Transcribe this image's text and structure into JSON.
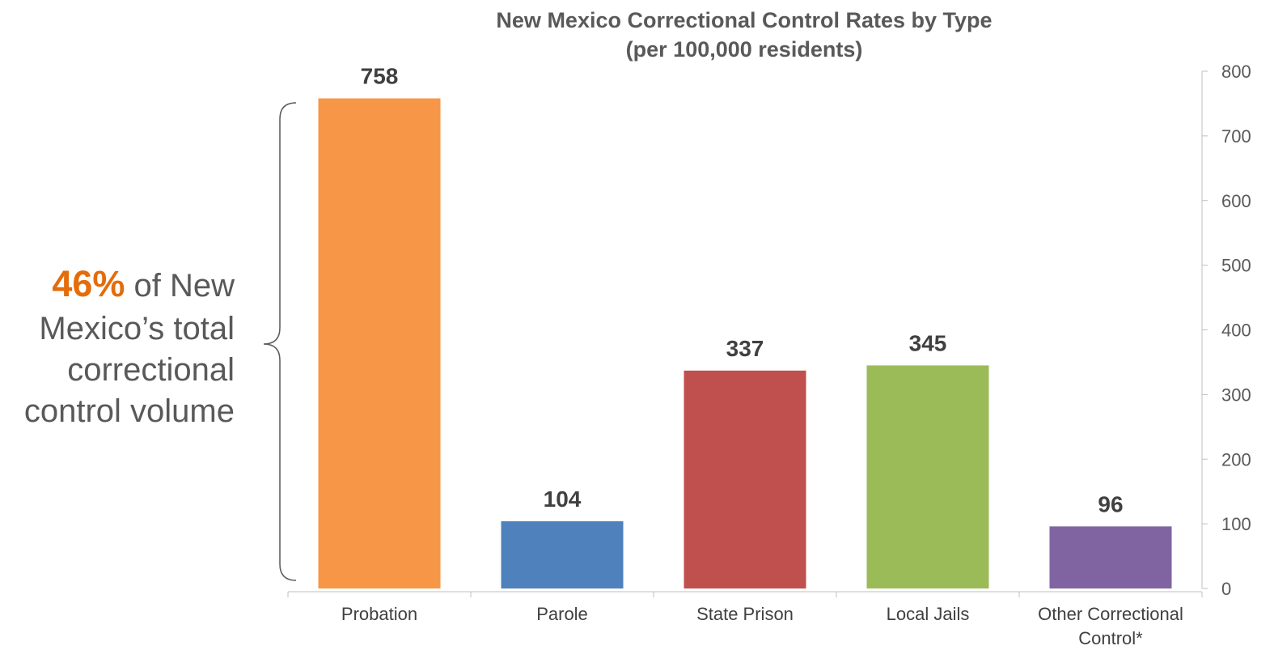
{
  "chart_data": {
    "type": "bar",
    "title": "New Mexico Correctional Control Rates by Type",
    "subtitle": "(per 100,000 residents)",
    "categories": [
      "Probation",
      "Parole",
      "State Prison",
      "Local Jails",
      "Other Correctional Control*"
    ],
    "category_lines": [
      [
        "Probation"
      ],
      [
        "Parole"
      ],
      [
        "State Prison"
      ],
      [
        "Local Jails"
      ],
      [
        "Other Correctional",
        "Control*"
      ]
    ],
    "values": [
      758,
      104,
      337,
      345,
      96
    ],
    "colors": [
      "#F79646",
      "#4F81BD",
      "#C0504D",
      "#9BBB59",
      "#8064A2"
    ],
    "y_axis_position": "right",
    "ylim": [
      0,
      800
    ],
    "yticks": [
      0,
      100,
      200,
      300,
      400,
      500,
      600,
      700,
      800
    ],
    "grid": false,
    "legend": "none",
    "xlabel": "",
    "ylabel": ""
  },
  "callout": {
    "percent": "46%",
    "line1_rest": " of New",
    "line2": "Mexico’s total",
    "line3": "correctional",
    "line4": "control volume",
    "percent_color": "#E46C0A"
  }
}
